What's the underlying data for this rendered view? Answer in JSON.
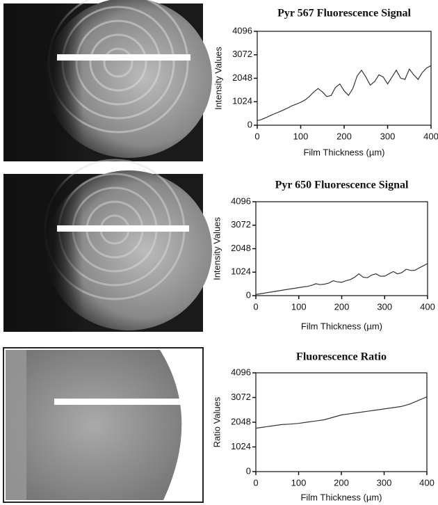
{
  "chart_data": [
    {
      "type": "line",
      "title": "Pyr 567 Fluorescence Signal",
      "x_label": "Film Thickness (µm)",
      "y_label": "Intensity Values",
      "x": [
        0,
        10,
        20,
        30,
        40,
        50,
        60,
        70,
        80,
        90,
        100,
        110,
        120,
        130,
        140,
        150,
        160,
        170,
        180,
        190,
        200,
        210,
        220,
        230,
        240,
        250,
        260,
        270,
        280,
        290,
        300,
        310,
        320,
        330,
        340,
        350,
        360,
        370,
        380,
        390,
        400
      ],
      "values": [
        200,
        250,
        330,
        420,
        500,
        580,
        660,
        750,
        850,
        920,
        1000,
        1100,
        1250,
        1450,
        1600,
        1450,
        1250,
        1300,
        1650,
        1800,
        1500,
        1300,
        1600,
        2150,
        2400,
        2100,
        1750,
        1900,
        2200,
        2100,
        1800,
        2100,
        2400,
        2050,
        2000,
        2450,
        2200,
        2000,
        2300,
        2500,
        2600
      ],
      "color": "#333333",
      "xlim": [
        0,
        400
      ],
      "xticks": [
        0,
        100,
        200,
        300,
        400
      ],
      "ylim": [
        0,
        4096
      ],
      "yticks": [
        0,
        1024,
        2048,
        3072,
        4096
      ]
    },
    {
      "type": "line",
      "title": "Pyr 650 Fluorescence Signal",
      "x_label": "Film Thickness (µm)",
      "y_label": "Intensity Values",
      "x": [
        0,
        10,
        20,
        30,
        40,
        50,
        60,
        70,
        80,
        90,
        100,
        110,
        120,
        130,
        140,
        150,
        160,
        170,
        180,
        190,
        200,
        210,
        220,
        230,
        240,
        250,
        260,
        270,
        280,
        290,
        300,
        310,
        320,
        330,
        340,
        350,
        360,
        370,
        380,
        390,
        400
      ],
      "values": [
        50,
        80,
        110,
        140,
        170,
        200,
        230,
        260,
        290,
        320,
        350,
        380,
        400,
        450,
        520,
        480,
        500,
        550,
        650,
        600,
        580,
        650,
        700,
        800,
        950,
        800,
        780,
        900,
        950,
        850,
        850,
        950,
        1050,
        950,
        1000,
        1150,
        1100,
        1100,
        1200,
        1300,
        1400
      ],
      "color": "#333333",
      "xlim": [
        0,
        400
      ],
      "xticks": [
        0,
        100,
        200,
        300,
        400
      ],
      "ylim": [
        0,
        4096
      ],
      "yticks": [
        0,
        1024,
        2048,
        3072,
        4096
      ]
    },
    {
      "type": "line",
      "title": "Fluorescence Ratio",
      "x_label": "Film Thickness (µm)",
      "y_label": "Ratio Values",
      "x": [
        0,
        20,
        40,
        60,
        80,
        100,
        120,
        140,
        160,
        180,
        200,
        220,
        240,
        260,
        280,
        300,
        320,
        340,
        360,
        380,
        400
      ],
      "values": [
        1800,
        1850,
        1900,
        1950,
        1970,
        2000,
        2050,
        2100,
        2150,
        2250,
        2350,
        2400,
        2450,
        2500,
        2550,
        2600,
        2650,
        2700,
        2800,
        2950,
        3100
      ],
      "color": "#333333",
      "xlim": [
        0,
        400
      ],
      "xticks": [
        0,
        100,
        200,
        300,
        400
      ],
      "ylim": [
        0,
        4096
      ],
      "yticks": [
        0,
        1024,
        2048,
        3072,
        4096
      ]
    }
  ]
}
